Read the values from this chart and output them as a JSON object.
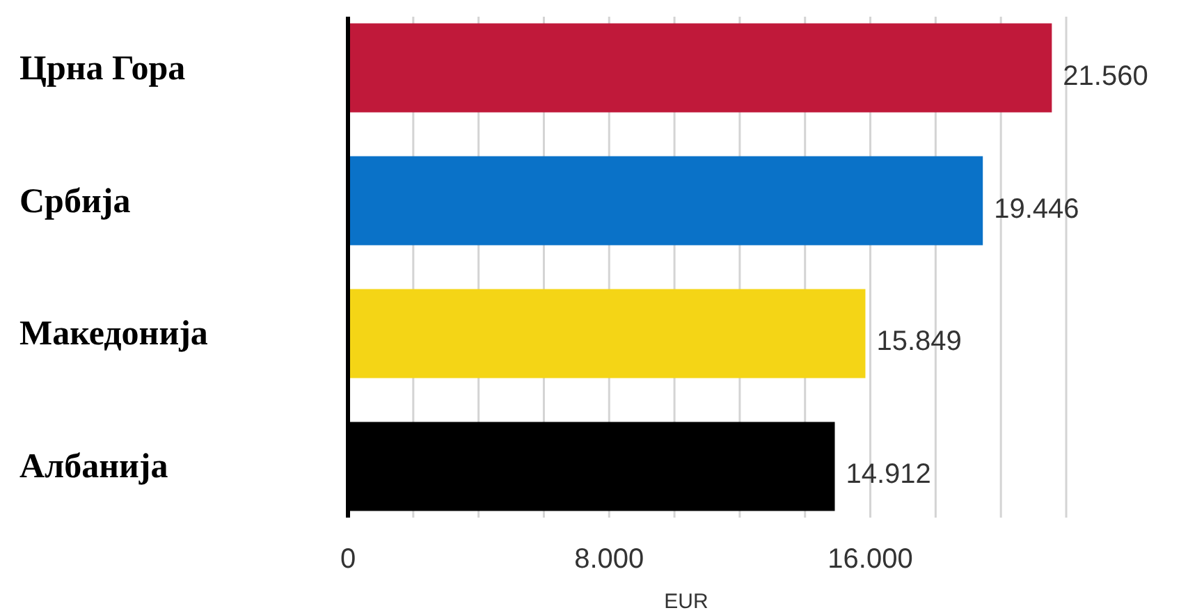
{
  "chart_data": {
    "type": "bar",
    "orientation": "horizontal",
    "xlabel": "EUR",
    "categories": [
      "Црна Гора",
      "Србија",
      "Македонија",
      "Албанија"
    ],
    "values": [
      21560,
      19446,
      15849,
      14912
    ],
    "colors": [
      "#c0193a",
      "#0a72c8",
      "#f4d516",
      "#000000"
    ],
    "value_labels": [
      "21.560",
      "19.446",
      "15.849",
      "14.912"
    ],
    "xlim": [
      0,
      22000
    ],
    "xticks": [
      0,
      {
        "value": 2000,
        "label": null
      },
      {
        "value": 4000,
        "label": null
      },
      {
        "value": 6000,
        "label": null
      },
      {
        "value": 8000,
        "label": "8.000"
      },
      {
        "value": 10000,
        "label": null
      },
      {
        "value": 12000,
        "label": null
      },
      {
        "value": 14000,
        "label": null
      },
      {
        "value": 16000,
        "label": "16.000"
      },
      {
        "value": 18000,
        "label": null
      },
      {
        "value": 20000,
        "label": null
      },
      {
        "value": 22000,
        "label": null
      }
    ],
    "grid": "x"
  }
}
